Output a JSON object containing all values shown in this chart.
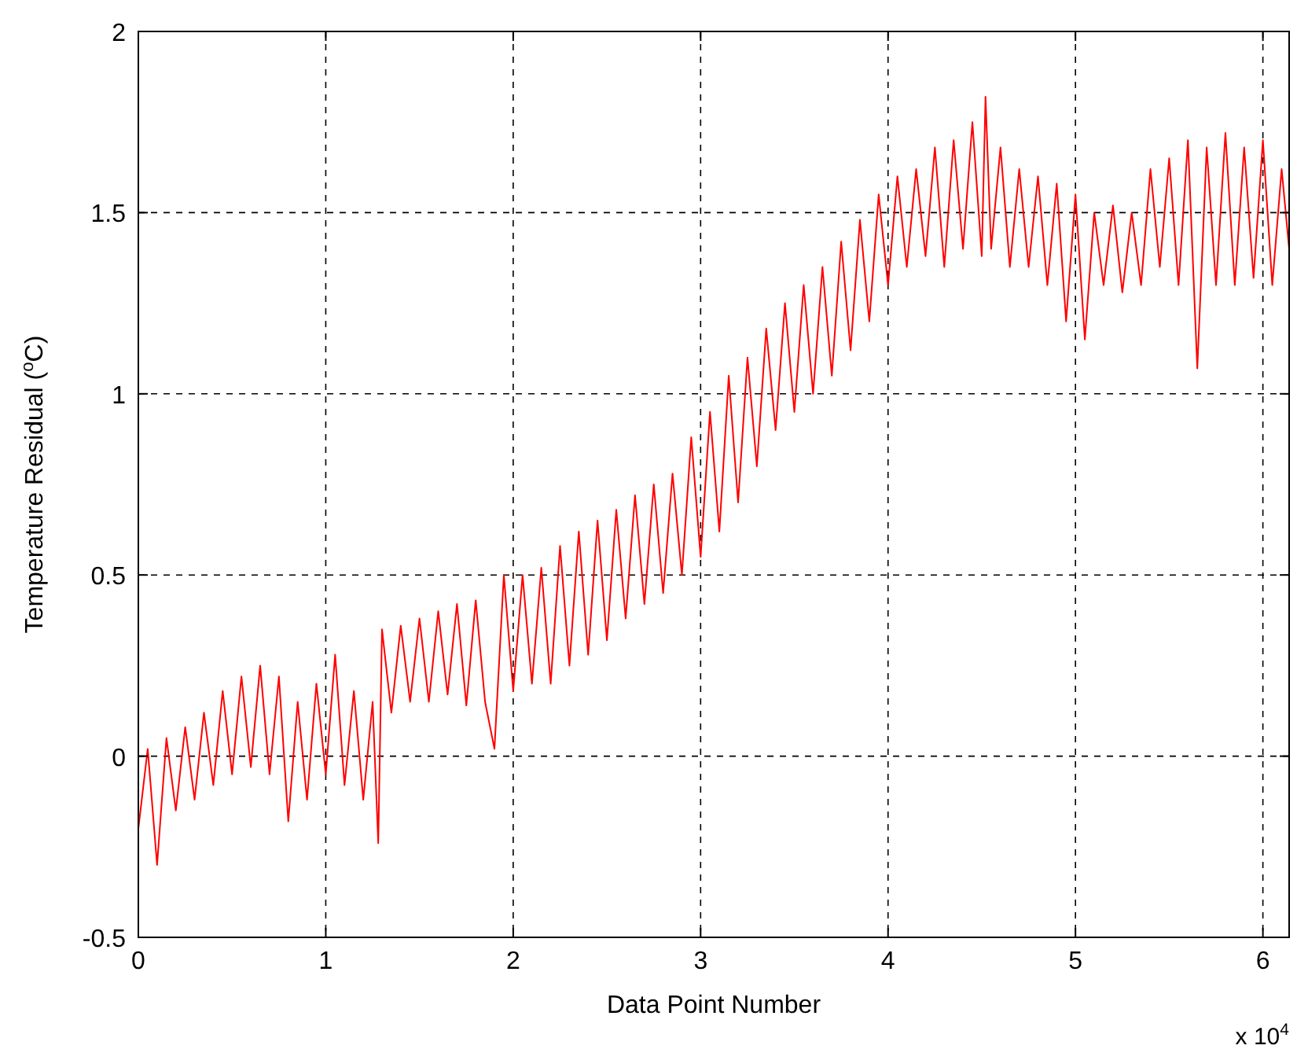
{
  "chart_data": {
    "type": "line",
    "xlabel": "Data Point Number",
    "ylabel": "Temperature Residual ($^{o}$C)",
    "xlim": [
      0,
      6.14
    ],
    "xticks": [
      0,
      1,
      2,
      3,
      4,
      5,
      6
    ],
    "ylim": [
      -0.5,
      2
    ],
    "yticks": [
      -0.5,
      0,
      0.5,
      1,
      1.5,
      2
    ],
    "grid": true,
    "line_style": "solid",
    "marker": "none",
    "annotations": [
      "x 10$^{4}$"
    ],
    "x": [
      0,
      0.05,
      0.1,
      0.15,
      0.2,
      0.25,
      0.3,
      0.35,
      0.4,
      0.45,
      0.5,
      0.55,
      0.6,
      0.65,
      0.7,
      0.75,
      0.8,
      0.85,
      0.9,
      0.95,
      1.0,
      1.05,
      1.1,
      1.15,
      1.2,
      1.25,
      1.28,
      1.3,
      1.35,
      1.4,
      1.45,
      1.5,
      1.55,
      1.6,
      1.65,
      1.7,
      1.75,
      1.8,
      1.85,
      1.9,
      1.95,
      2.0,
      2.05,
      2.1,
      2.15,
      2.2,
      2.25,
      2.3,
      2.35,
      2.4,
      2.45,
      2.5,
      2.55,
      2.6,
      2.65,
      2.7,
      2.75,
      2.8,
      2.85,
      2.9,
      2.95,
      3.0,
      3.05,
      3.1,
      3.15,
      3.2,
      3.25,
      3.3,
      3.35,
      3.4,
      3.45,
      3.5,
      3.55,
      3.6,
      3.65,
      3.7,
      3.75,
      3.8,
      3.85,
      3.9,
      3.95,
      4.0,
      4.05,
      4.1,
      4.15,
      4.2,
      4.25,
      4.3,
      4.35,
      4.4,
      4.45,
      4.5,
      4.52,
      4.55,
      4.6,
      4.65,
      4.7,
      4.75,
      4.8,
      4.85,
      4.9,
      4.95,
      5.0,
      5.05,
      5.1,
      5.15,
      5.2,
      5.25,
      5.3,
      5.35,
      5.4,
      5.45,
      5.5,
      5.55,
      5.6,
      5.65,
      5.7,
      5.75,
      5.8,
      5.85,
      5.9,
      5.95,
      6.0,
      6.05,
      6.1,
      6.14
    ],
    "series": [
      {
        "color": "#ff0000",
        "values": [
          -0.2,
          0.02,
          -0.3,
          0.05,
          -0.15,
          0.08,
          -0.12,
          0.12,
          -0.08,
          0.18,
          -0.05,
          0.22,
          -0.03,
          0.25,
          -0.05,
          0.22,
          -0.18,
          0.15,
          -0.12,
          0.2,
          -0.05,
          0.28,
          -0.08,
          0.18,
          -0.12,
          0.15,
          -0.24,
          0.35,
          0.12,
          0.36,
          0.15,
          0.38,
          0.15,
          0.4,
          0.17,
          0.42,
          0.14,
          0.43,
          0.15,
          0.02,
          0.5,
          0.18,
          0.5,
          0.2,
          0.52,
          0.2,
          0.58,
          0.25,
          0.62,
          0.28,
          0.65,
          0.32,
          0.68,
          0.38,
          0.72,
          0.42,
          0.75,
          0.45,
          0.78,
          0.5,
          0.88,
          0.55,
          0.95,
          0.62,
          1.05,
          0.7,
          1.1,
          0.8,
          1.18,
          0.9,
          1.25,
          0.95,
          1.3,
          1.0,
          1.35,
          1.05,
          1.42,
          1.12,
          1.48,
          1.2,
          1.55,
          1.3,
          1.6,
          1.35,
          1.62,
          1.38,
          1.68,
          1.35,
          1.7,
          1.4,
          1.75,
          1.38,
          1.82,
          1.4,
          1.68,
          1.35,
          1.62,
          1.35,
          1.6,
          1.3,
          1.58,
          1.2,
          1.55,
          1.15,
          1.5,
          1.3,
          1.52,
          1.28,
          1.5,
          1.3,
          1.62,
          1.35,
          1.65,
          1.3,
          1.7,
          1.07,
          1.68,
          1.3,
          1.72,
          1.3,
          1.68,
          1.32,
          1.7,
          1.3,
          1.62,
          1.4
        ]
      }
    ]
  }
}
